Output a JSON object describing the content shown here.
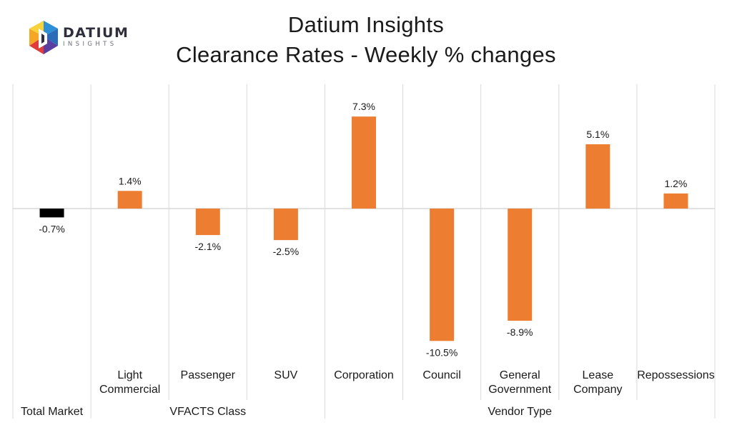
{
  "header": {
    "title_line1": "Datium Insights",
    "title_line2": "Clearance Rates - Weekly % changes"
  },
  "logo": {
    "name": "DATIUM",
    "tagline": "INSIGHTS"
  },
  "colors": {
    "total_bar": "#000000",
    "category_bar": "#ED7D31",
    "gridline": "#d9d9d9",
    "text": "#1a1a1a"
  },
  "chart_data": {
    "type": "bar",
    "title": "Clearance Rates - Weekly % changes",
    "xlabel": "",
    "ylabel": "",
    "ylim": [
      -12,
      10
    ],
    "grid": true,
    "categories": [
      "Total Market",
      "Light Commercial",
      "Passenger",
      "SUV",
      "Corporation",
      "Council",
      "General Government",
      "Lease Company",
      "Repossessions"
    ],
    "category_lines": [
      [
        "",
        ""
      ],
      [
        "Light",
        "Commercial"
      ],
      [
        "Passenger",
        ""
      ],
      [
        "SUV",
        ""
      ],
      [
        "Corporation",
        ""
      ],
      [
        "Council",
        ""
      ],
      [
        "General",
        "Government"
      ],
      [
        "Lease",
        "Company"
      ],
      [
        "Repossessions",
        ""
      ]
    ],
    "groups": [
      {
        "name": "Total Market",
        "start": 0,
        "end": 0
      },
      {
        "name": "VFACTS Class",
        "start": 1,
        "end": 3
      },
      {
        "name": "Vendor Type",
        "start": 4,
        "end": 8
      }
    ],
    "values": [
      -0.7,
      1.4,
      -2.1,
      -2.5,
      7.3,
      -10.5,
      -8.9,
      5.1,
      1.2
    ],
    "labels": [
      "-0.7%",
      "1.4%",
      "-2.1%",
      "-2.5%",
      "7.3%",
      "-10.5%",
      "-8.9%",
      "5.1%",
      "1.2%"
    ],
    "unit": "%"
  }
}
